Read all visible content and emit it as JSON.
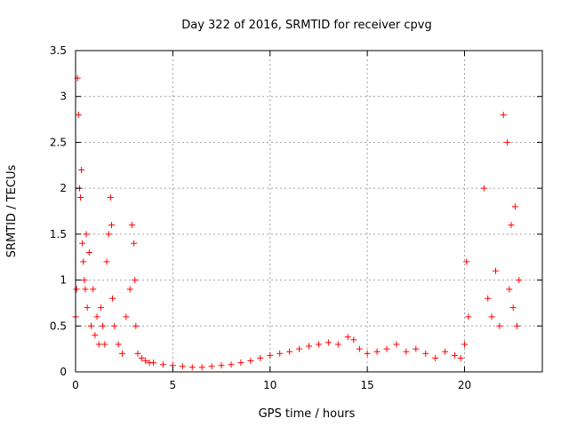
{
  "chart_data": {
    "type": "scatter",
    "title": "Day 322 of 2016, SRMTID for receiver cpvg",
    "xlabel": "GPS time / hours",
    "ylabel": "SRMTID / TECUs",
    "xlim": [
      0,
      24
    ],
    "ylim": [
      0,
      3.5
    ],
    "xticks": [
      "0",
      "5",
      "10",
      "15",
      "20"
    ],
    "xtick_values": [
      0,
      5,
      10,
      15,
      20
    ],
    "yticks": [
      "0",
      "0.5",
      "1",
      "1.5",
      "2",
      "2.5",
      "3",
      "3.5"
    ],
    "ytick_values": [
      0,
      0.5,
      1,
      1.5,
      2,
      2.5,
      3,
      3.5
    ],
    "grid": true,
    "marker": "+",
    "color": "#ff0000",
    "series": [
      {
        "name": "cpvg",
        "x": [
          0.0,
          0.05,
          0.1,
          0.15,
          0.2,
          0.25,
          0.3,
          0.35,
          0.4,
          0.45,
          0.5,
          0.55,
          0.6,
          0.7,
          0.8,
          0.9,
          1.0,
          1.1,
          1.2,
          1.3,
          1.4,
          1.5,
          1.6,
          1.7,
          1.8,
          1.85,
          1.9,
          2.0,
          2.2,
          2.4,
          2.6,
          2.8,
          2.9,
          3.0,
          3.05,
          3.1,
          3.2,
          3.4,
          3.6,
          3.8,
          4.0,
          4.5,
          5.0,
          5.5,
          6.0,
          6.5,
          7.0,
          7.5,
          8.0,
          8.5,
          9.0,
          9.5,
          10.0,
          10.5,
          11.0,
          11.5,
          12.0,
          12.5,
          13.0,
          13.5,
          14.0,
          14.3,
          14.6,
          15.0,
          15.5,
          16.0,
          16.5,
          17.0,
          17.5,
          18.0,
          18.5,
          19.0,
          19.5,
          19.8,
          20.0,
          20.1,
          20.2,
          21.0,
          21.2,
          21.4,
          21.6,
          21.8,
          22.0,
          22.2,
          22.3,
          22.4,
          22.5,
          22.6,
          22.7,
          22.8
        ],
        "y": [
          0.6,
          0.9,
          3.2,
          2.8,
          2.0,
          1.9,
          2.2,
          1.4,
          1.2,
          1.0,
          0.9,
          1.5,
          0.7,
          1.3,
          0.5,
          0.9,
          0.4,
          0.6,
          0.3,
          0.7,
          0.5,
          0.3,
          1.2,
          1.5,
          1.9,
          1.6,
          0.8,
          0.5,
          0.3,
          0.2,
          0.6,
          0.9,
          1.6,
          1.4,
          1.0,
          0.5,
          0.2,
          0.15,
          0.12,
          0.1,
          0.1,
          0.08,
          0.07,
          0.06,
          0.05,
          0.05,
          0.06,
          0.07,
          0.08,
          0.1,
          0.12,
          0.15,
          0.18,
          0.2,
          0.22,
          0.25,
          0.28,
          0.3,
          0.32,
          0.3,
          0.38,
          0.35,
          0.25,
          0.2,
          0.22,
          0.25,
          0.3,
          0.22,
          0.25,
          0.2,
          0.15,
          0.22,
          0.18,
          0.15,
          0.3,
          1.2,
          0.6,
          2.0,
          0.8,
          0.6,
          1.1,
          0.5,
          2.8,
          2.5,
          0.9,
          1.6,
          0.7,
          1.8,
          0.5,
          1.0
        ]
      }
    ]
  }
}
